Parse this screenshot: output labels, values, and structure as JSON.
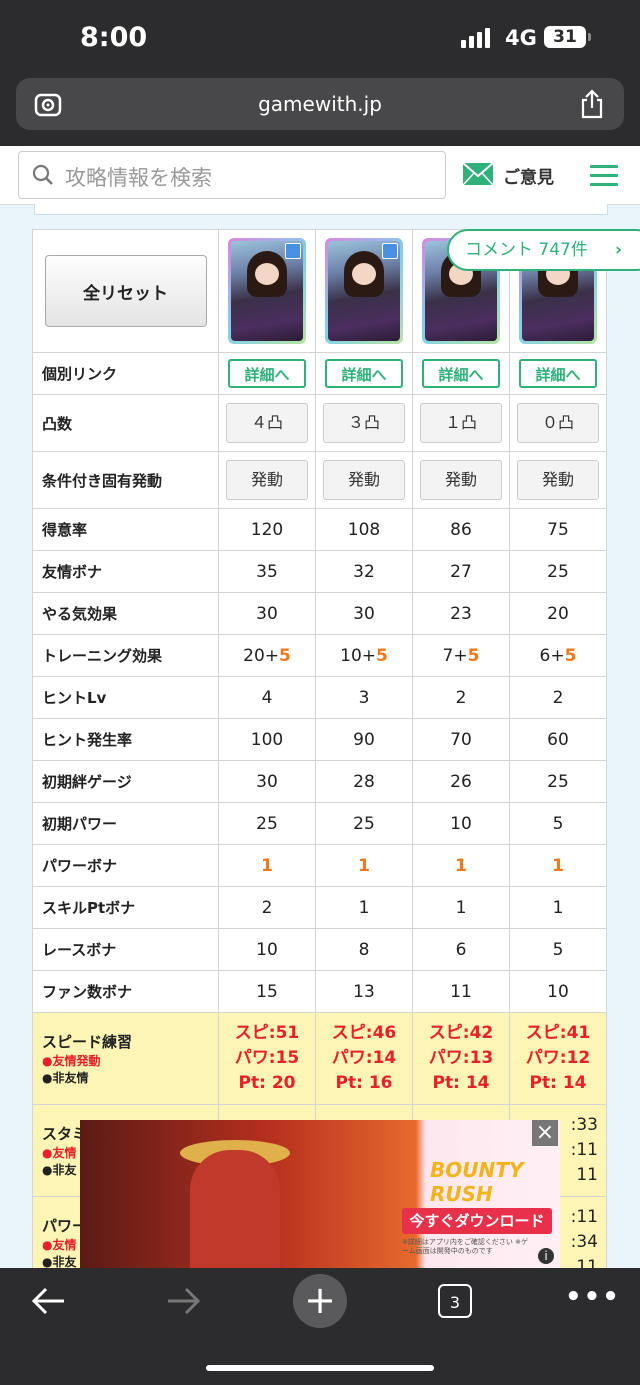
{
  "status": {
    "time": "8:00",
    "network": "4G",
    "battery": "31"
  },
  "browser": {
    "url": "gamewith.jp",
    "tab_count": "3"
  },
  "site": {
    "search_placeholder": "攻略情報を検索",
    "opinion_label": "ご意見",
    "comment_label": "コメント  747件",
    "comment_arrow": "›"
  },
  "table": {
    "reset_label": "全リセット",
    "detail_label": "詳細へ",
    "levels": [
      "４凸",
      "３凸",
      "１凸",
      "０凸"
    ],
    "trigger_label": "発動",
    "rows_basic": [
      {
        "label": "得意率",
        "values": [
          "120",
          "108",
          "86",
          "75"
        ]
      },
      {
        "label": "友情ボナ",
        "values": [
          "35",
          "32",
          "27",
          "25"
        ]
      },
      {
        "label": "やる気効果",
        "values": [
          "30",
          "30",
          "23",
          "20"
        ]
      }
    ],
    "training": {
      "label": "トレーニング効果",
      "base": [
        "20+",
        "10+",
        "7+",
        "6+"
      ],
      "bonus": [
        "5",
        "5",
        "5",
        "5"
      ]
    },
    "rows_mid": [
      {
        "label": "ヒントLv",
        "values": [
          "4",
          "3",
          "2",
          "2"
        ]
      },
      {
        "label": "ヒント発生率",
        "values": [
          "100",
          "90",
          "70",
          "60"
        ]
      },
      {
        "label": "初期絆ゲージ",
        "values": [
          "30",
          "28",
          "26",
          "25"
        ]
      },
      {
        "label": "初期パワー",
        "values": [
          "25",
          "25",
          "10",
          "5"
        ]
      }
    ],
    "power_bonus": {
      "label": "パワーボナ",
      "values": [
        "1",
        "1",
        "1",
        "1"
      ]
    },
    "rows_end": [
      {
        "label": "スキルPtボナ",
        "values": [
          "2",
          "1",
          "1",
          "1"
        ]
      },
      {
        "label": "レースボナ",
        "values": [
          "10",
          "8",
          "6",
          "5"
        ]
      },
      {
        "label": "ファン数ボナ",
        "values": [
          "15",
          "13",
          "11",
          "10"
        ]
      }
    ],
    "row_labels": {
      "link": "個別リンク",
      "level": "凸数",
      "trigger": "条件付き固有発動"
    },
    "speed": {
      "label": "スピード練習",
      "note_red": "●友情発動",
      "note_black": "●非友情",
      "cols": [
        [
          "スピ:51",
          "パワ:15",
          "Pt: 20"
        ],
        [
          "スピ:46",
          "パワ:14",
          "Pt: 16"
        ],
        [
          "スピ:42",
          "パワ:13",
          "Pt: 14"
        ],
        [
          "スピ:41",
          "パワ:12",
          "Pt: 14"
        ]
      ]
    },
    "stamina_partial": {
      "label": "スタミ",
      "note_red": "●友情",
      "note_black": "●非友",
      "right": [
        ":33",
        ":11",
        "11"
      ]
    },
    "power_partial": {
      "label": "パワー",
      "note_red": "●友情",
      "note_black": "●非友",
      "right": [
        ":11",
        ":34",
        "11"
      ]
    }
  },
  "ad": {
    "title": "BOUNTY RUSH",
    "download": "今すぐダウンロード",
    "close": "×",
    "info": "i",
    "fine_print": "※詳細はアプリ内をご確認ください ※ゲーム画面は開発中のものです"
  }
}
